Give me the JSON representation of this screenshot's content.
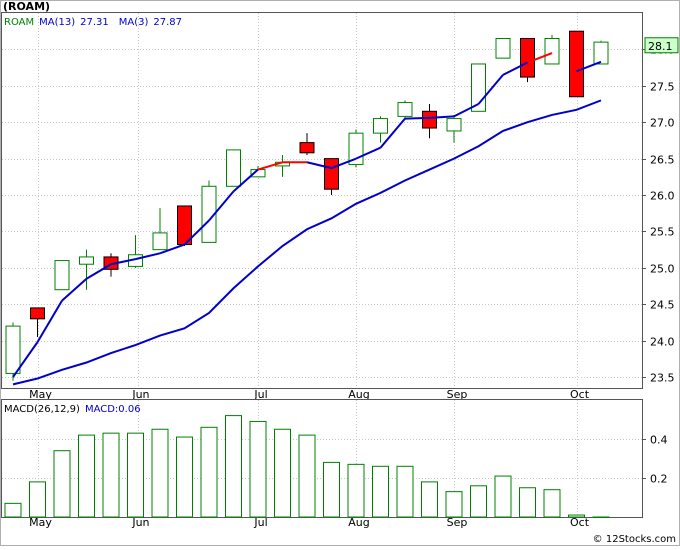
{
  "ticker_title": "(ROAM)",
  "footer_copyright": "© 12Stocks.com",
  "chart_data": [
    {
      "type": "candlestick",
      "ticker": "ROAM",
      "legend": [
        {
          "label": "ROAM",
          "color": "#008000"
        },
        {
          "label": "MA(13)",
          "value": "27.31",
          "color": "#0000cc"
        },
        {
          "label": "MA(3)",
          "value": "27.87",
          "color": "#0000cc"
        }
      ],
      "ylim": [
        23.35,
        28.5
      ],
      "yticks": [
        "23.5",
        "24.0",
        "24.5",
        "25.0",
        "25.5",
        "26.0",
        "26.5",
        "27.0",
        "27.5",
        "28.0"
      ],
      "last_price_label": "28.1",
      "x_months": [
        {
          "label": "May",
          "i": 1
        },
        {
          "label": "Jun",
          "i": 5.1
        },
        {
          "label": "Jul",
          "i": 10
        },
        {
          "label": "Aug",
          "i": 14
        },
        {
          "label": "Sep",
          "i": 18
        },
        {
          "label": "Oct",
          "i": 23
        }
      ],
      "up_color": "#008000",
      "down_color": "#ff0000",
      "ohlc": [
        {
          "o": 23.55,
          "h": 24.25,
          "l": 23.45,
          "c": 24.2
        },
        {
          "o": 24.45,
          "h": 24.45,
          "l": 24.05,
          "c": 24.3
        },
        {
          "o": 24.7,
          "h": 25.1,
          "l": 24.7,
          "c": 25.1
        },
        {
          "o": 25.05,
          "h": 25.25,
          "l": 24.7,
          "c": 25.15
        },
        {
          "o": 25.15,
          "h": 25.2,
          "l": 24.88,
          "c": 24.98
        },
        {
          "o": 25.02,
          "h": 25.45,
          "l": 25.0,
          "c": 25.18
        },
        {
          "o": 25.25,
          "h": 25.82,
          "l": 25.25,
          "c": 25.48
        },
        {
          "o": 25.85,
          "h": 25.85,
          "l": 25.3,
          "c": 25.32
        },
        {
          "o": 25.35,
          "h": 26.2,
          "l": 25.35,
          "c": 26.12
        },
        {
          "o": 26.12,
          "h": 26.62,
          "l": 26.12,
          "c": 26.62
        },
        {
          "o": 26.25,
          "h": 26.4,
          "l": 26.25,
          "c": 26.35
        },
        {
          "o": 26.4,
          "h": 26.55,
          "l": 26.25,
          "c": 26.45
        },
        {
          "o": 26.72,
          "h": 26.85,
          "l": 26.55,
          "c": 26.58
        },
        {
          "o": 26.5,
          "h": 26.5,
          "l": 26.0,
          "c": 26.08
        },
        {
          "o": 26.42,
          "h": 26.9,
          "l": 26.38,
          "c": 26.85
        },
        {
          "o": 26.85,
          "h": 27.08,
          "l": 26.72,
          "c": 27.05
        },
        {
          "o": 27.08,
          "h": 27.3,
          "l": 27.05,
          "c": 27.27
        },
        {
          "o": 27.15,
          "h": 27.25,
          "l": 26.78,
          "c": 26.92
        },
        {
          "o": 26.88,
          "h": 27.1,
          "l": 26.72,
          "c": 27.05
        },
        {
          "o": 27.15,
          "h": 27.8,
          "l": 27.15,
          "c": 27.8
        },
        {
          "o": 27.88,
          "h": 28.15,
          "l": 27.88,
          "c": 28.15
        },
        {
          "o": 28.15,
          "h": 28.15,
          "l": 27.55,
          "c": 27.62
        },
        {
          "o": 27.8,
          "h": 28.2,
          "l": 27.8,
          "c": 28.15
        },
        {
          "o": 28.25,
          "h": 28.25,
          "l": 27.35,
          "c": 27.35
        },
        {
          "o": 27.8,
          "h": 28.12,
          "l": 27.8,
          "c": 28.1
        }
      ],
      "ma13": [
        {
          "i": 0,
          "v": 23.4
        },
        {
          "i": 1,
          "v": 23.48
        },
        {
          "i": 2,
          "v": 23.6
        },
        {
          "i": 3,
          "v": 23.7
        },
        {
          "i": 4,
          "v": 23.83
        },
        {
          "i": 5,
          "v": 23.94
        },
        {
          "i": 6,
          "v": 24.07
        },
        {
          "i": 7,
          "v": 24.17
        },
        {
          "i": 8,
          "v": 24.38
        },
        {
          "i": 9,
          "v": 24.72
        },
        {
          "i": 10,
          "v": 25.02
        },
        {
          "i": 11,
          "v": 25.3
        },
        {
          "i": 12,
          "v": 25.53
        },
        {
          "i": 13,
          "v": 25.68
        },
        {
          "i": 14,
          "v": 25.88
        },
        {
          "i": 15,
          "v": 26.03
        },
        {
          "i": 16,
          "v": 26.2
        },
        {
          "i": 17,
          "v": 26.35
        },
        {
          "i": 18,
          "v": 26.5
        },
        {
          "i": 19,
          "v": 26.67
        },
        {
          "i": 20,
          "v": 26.88
        },
        {
          "i": 21,
          "v": 27.0
        },
        {
          "i": 22,
          "v": 27.1
        },
        {
          "i": 23,
          "v": 27.17
        },
        {
          "i": 24,
          "v": 27.3
        }
      ],
      "ma3": [
        {
          "i": 0,
          "v": 23.5,
          "c": "#0000cc"
        },
        {
          "i": 1,
          "v": 23.98,
          "c": "#0000cc"
        },
        {
          "i": 2,
          "v": 24.55,
          "c": "#0000cc"
        },
        {
          "i": 3,
          "v": 24.85,
          "c": "#0000cc"
        },
        {
          "i": 4,
          "v": 25.05,
          "c": "#0000cc"
        },
        {
          "i": 5,
          "v": 25.12,
          "c": "#0000cc"
        },
        {
          "i": 6,
          "v": 25.2,
          "c": "#0000cc"
        },
        {
          "i": 7,
          "v": 25.32,
          "c": "#0000cc"
        },
        {
          "i": 8,
          "v": 25.65,
          "c": "#0000cc"
        },
        {
          "i": 9,
          "v": 26.05,
          "c": "#0000cc"
        },
        {
          "i": 10,
          "v": 26.35,
          "c": "#0000cc"
        },
        {
          "i": 11,
          "v": 26.45,
          "c": "#ff0000"
        },
        {
          "i": 12,
          "v": 26.45,
          "c": "#ff0000"
        },
        {
          "i": 13,
          "v": 26.37,
          "c": "#0000cc"
        },
        {
          "i": 14,
          "v": 26.5,
          "c": "#0000cc"
        },
        {
          "i": 15,
          "v": 26.65,
          "c": "#0000cc"
        },
        {
          "i": 16,
          "v": 27.05,
          "c": "#0000cc"
        },
        {
          "i": 17,
          "v": 27.06,
          "c": "#0000cc"
        },
        {
          "i": 18,
          "v": 27.08,
          "c": "#0000cc"
        },
        {
          "i": 19,
          "v": 27.25,
          "c": "#0000cc"
        },
        {
          "i": 20,
          "v": 27.65,
          "c": "#0000cc"
        },
        {
          "i": 21,
          "v": 27.82,
          "c": "#0000cc"
        },
        {
          "i": 22,
          "v": 27.95,
          "c": "#ff0000"
        },
        {
          "i": 23,
          "v": 27.7,
          "c": "#0000cc"
        },
        {
          "i": 24,
          "v": 27.83,
          "c": "#0000cc"
        }
      ]
    },
    {
      "type": "bar",
      "indicator": "MACD",
      "legend": [
        {
          "label": "MACD(26,12,9)",
          "color": "#000000"
        },
        {
          "label": "MACD:0.06",
          "color": "#0000cc"
        }
      ],
      "ylim": [
        0.0,
        0.6
      ],
      "yticks": [
        "0.2",
        "0.4"
      ],
      "bar_color": "#008000",
      "values": [
        0.07,
        0.18,
        0.34,
        0.42,
        0.43,
        0.43,
        0.45,
        0.41,
        0.46,
        0.52,
        0.49,
        0.45,
        0.42,
        0.28,
        0.27,
        0.26,
        0.26,
        0.18,
        0.13,
        0.16,
        0.21,
        0.15,
        0.14,
        0.01,
        0.0
      ]
    }
  ]
}
